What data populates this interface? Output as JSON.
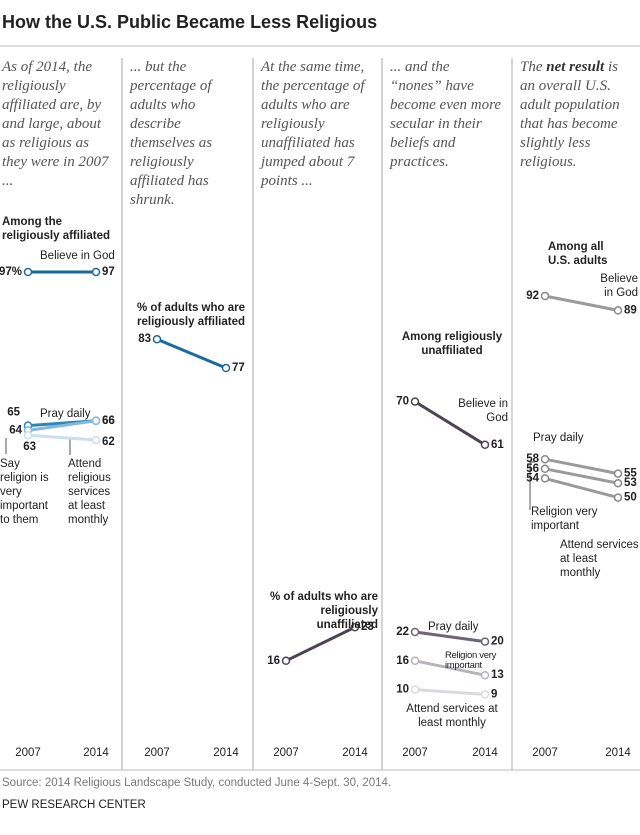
{
  "title": "How the U.S. Public Became Less Religious",
  "source": "Source: 2014 Religious Landscape Study, conducted June 4-Sept. 30, 2014.",
  "footer": "PEW RESEARCH CENTER",
  "chart_data": [
    {
      "type": "slope",
      "caption": "As of 2014, the religiously affiliated are, by and large, about as religious as they were in 2007 ...",
      "subtitle": "Among the religiously affiliated",
      "categories": [
        "2007",
        "2014"
      ],
      "ylim": [
        0,
        100
      ],
      "series": [
        {
          "name": "Believe in God",
          "color": "#1b6a9c",
          "values": [
            97,
            97
          ],
          "value_labels": [
            "97%",
            "97"
          ]
        },
        {
          "name": "Pray daily",
          "color": "#2d86bb",
          "values": [
            65,
            66
          ]
        },
        {
          "name": "Say religion is very important to them",
          "color": "#84b8d8",
          "values": [
            64,
            66
          ]
        },
        {
          "name": "Attend religious services at least monthly",
          "color": "#c9e0ee",
          "values": [
            63,
            62
          ]
        }
      ]
    },
    {
      "type": "slope",
      "caption": "... but the percentage of adults who describe themselves as religiously affiliated has shrunk.",
      "subtitle": "% of adults who are religiously affiliated",
      "categories": [
        "2007",
        "2014"
      ],
      "ylim": [
        0,
        100
      ],
      "series": [
        {
          "color": "#1b6a9c",
          "values": [
            83,
            77
          ]
        }
      ]
    },
    {
      "type": "slope",
      "caption": "At the same time, the percentage of adults who are religiously unaffiliated has jumped about 7 points ...",
      "subtitle": "% of adults who are religiously unaffiliated",
      "categories": [
        "2007",
        "2014"
      ],
      "ylim": [
        0,
        100
      ],
      "series": [
        {
          "color": "#4c4452",
          "values": [
            16,
            23
          ]
        }
      ]
    },
    {
      "type": "slope",
      "caption": "... and the “nones” have become even more secular in their beliefs and practices.",
      "subtitle": "Among religiously unaffiliated",
      "categories": [
        "2007",
        "2014"
      ],
      "ylim": [
        0,
        100
      ],
      "series": [
        {
          "name": "Believe in God",
          "color": "#4c4452",
          "values": [
            70,
            61
          ]
        },
        {
          "name": "Pray daily",
          "color": "#6d6572",
          "values": [
            22,
            20
          ]
        },
        {
          "name": "Religion very important",
          "color": "#b8b3bb",
          "values": [
            16,
            13
          ]
        },
        {
          "name": "Attend services at least monthly",
          "color": "#dcd9de",
          "values": [
            10,
            9
          ]
        }
      ]
    },
    {
      "type": "slope",
      "caption_lead": "The",
      "caption_bold": "net result",
      "caption": "is an overall U.S. adult population that has become slightly less religious.",
      "subtitle": "Among all U.S. adults",
      "categories": [
        "2007",
        "2014"
      ],
      "ylim": [
        0,
        100
      ],
      "series": [
        {
          "name": "Believe in God",
          "color": "#9a9a9a",
          "values": [
            92,
            89
          ]
        },
        {
          "name": "Pray daily",
          "color": "#9a9a9a",
          "values": [
            58,
            55
          ]
        },
        {
          "name": "Religion very important",
          "color": "#9a9a9a",
          "values": [
            56,
            53
          ]
        },
        {
          "name": "Attend services at least monthly",
          "color": "#9a9a9a",
          "values": [
            54,
            50
          ]
        }
      ]
    }
  ]
}
